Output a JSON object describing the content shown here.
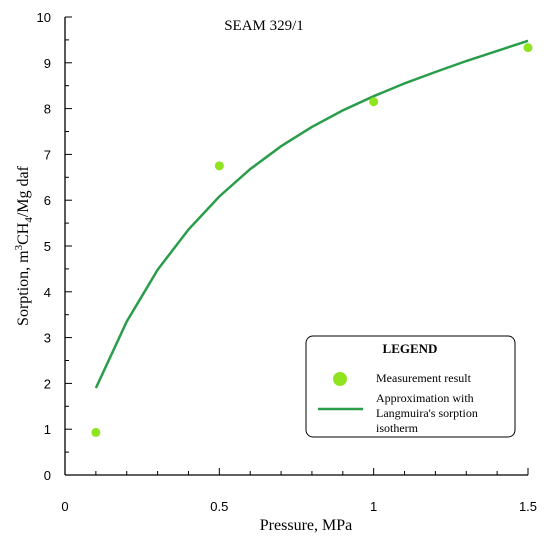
{
  "chart_data": {
    "type": "scatter",
    "title": "SEAM 329/1",
    "xlabel": "Pressure, MPa",
    "ylabel_main": "Sorption, m",
    "ylabel_sup": "3",
    "ylabel_mid": "CH",
    "ylabel_sub": "4",
    "ylabel_end": "/Mg daf",
    "xlim": [
      0,
      1.5
    ],
    "ylim": [
      0,
      10
    ],
    "x_ticks": [
      "0",
      "0.5",
      "1",
      "1.5"
    ],
    "x_tick_values": [
      0,
      0.5,
      1,
      1.5
    ],
    "y_ticks": [
      "0",
      "1",
      "2",
      "3",
      "4",
      "5",
      "6",
      "7",
      "8",
      "9",
      "10"
    ],
    "y_tick_values": [
      0,
      1,
      2,
      3,
      4,
      5,
      6,
      7,
      8,
      9,
      10
    ],
    "series": [
      {
        "name": "Measurement result",
        "kind": "points",
        "color": "#8fe31f",
        "x": [
          0.1,
          0.5,
          1.0,
          1.5
        ],
        "y": [
          0.93,
          6.75,
          8.15,
          9.33
        ]
      },
      {
        "name": "Approximation with Langmuira's sorption isotherm",
        "kind": "line",
        "color": "#2a9d4a",
        "x": [
          0.1,
          0.2,
          0.3,
          0.4,
          0.5,
          0.6,
          0.7,
          0.8,
          0.9,
          1.0,
          1.1,
          1.2,
          1.3,
          1.4,
          1.5
        ],
        "y": [
          1.9,
          3.35,
          4.48,
          5.36,
          6.08,
          6.68,
          7.18,
          7.6,
          7.96,
          8.27,
          8.55,
          8.8,
          9.04,
          9.26,
          9.48
        ]
      }
    ],
    "legend": {
      "title": "LEGEND",
      "placement": "bottom-right",
      "entries": [
        "Measurement result",
        "Approximation with",
        "Langmuira's sorption",
        "isotherm"
      ]
    }
  }
}
